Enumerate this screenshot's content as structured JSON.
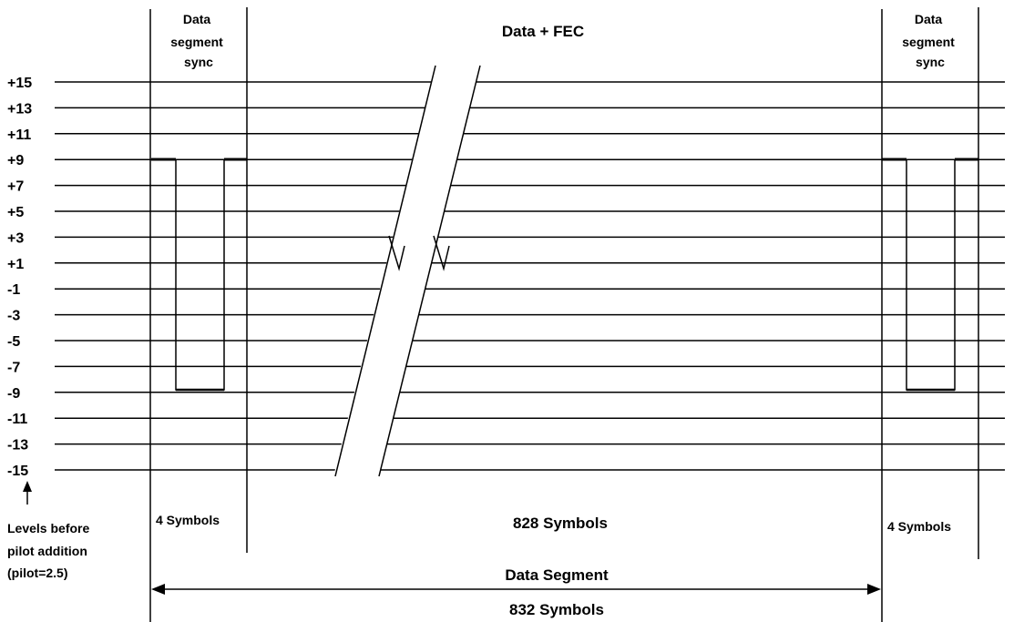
{
  "levels": [
    "+15",
    "+13",
    "+11",
    "+9",
    "+7",
    "+5",
    "+3",
    "+1",
    "-1",
    "-3",
    "-5",
    "-7",
    "-9",
    "-11",
    "-13",
    "-15"
  ],
  "left_sync_label": [
    "Data",
    "segment",
    "sync"
  ],
  "right_sync_label": [
    "Data",
    "segment",
    "sync"
  ],
  "data_fec_label": "Data + FEC",
  "levels_note": [
    "Levels before",
    "pilot addition",
    "(pilot=2.5)"
  ],
  "left_symbols": "4 Symbols",
  "middle_symbols": "828 Symbols",
  "right_symbols": "4 Symbols",
  "segment_label": "Data Segment",
  "segment_symbols": "832 Symbols"
}
